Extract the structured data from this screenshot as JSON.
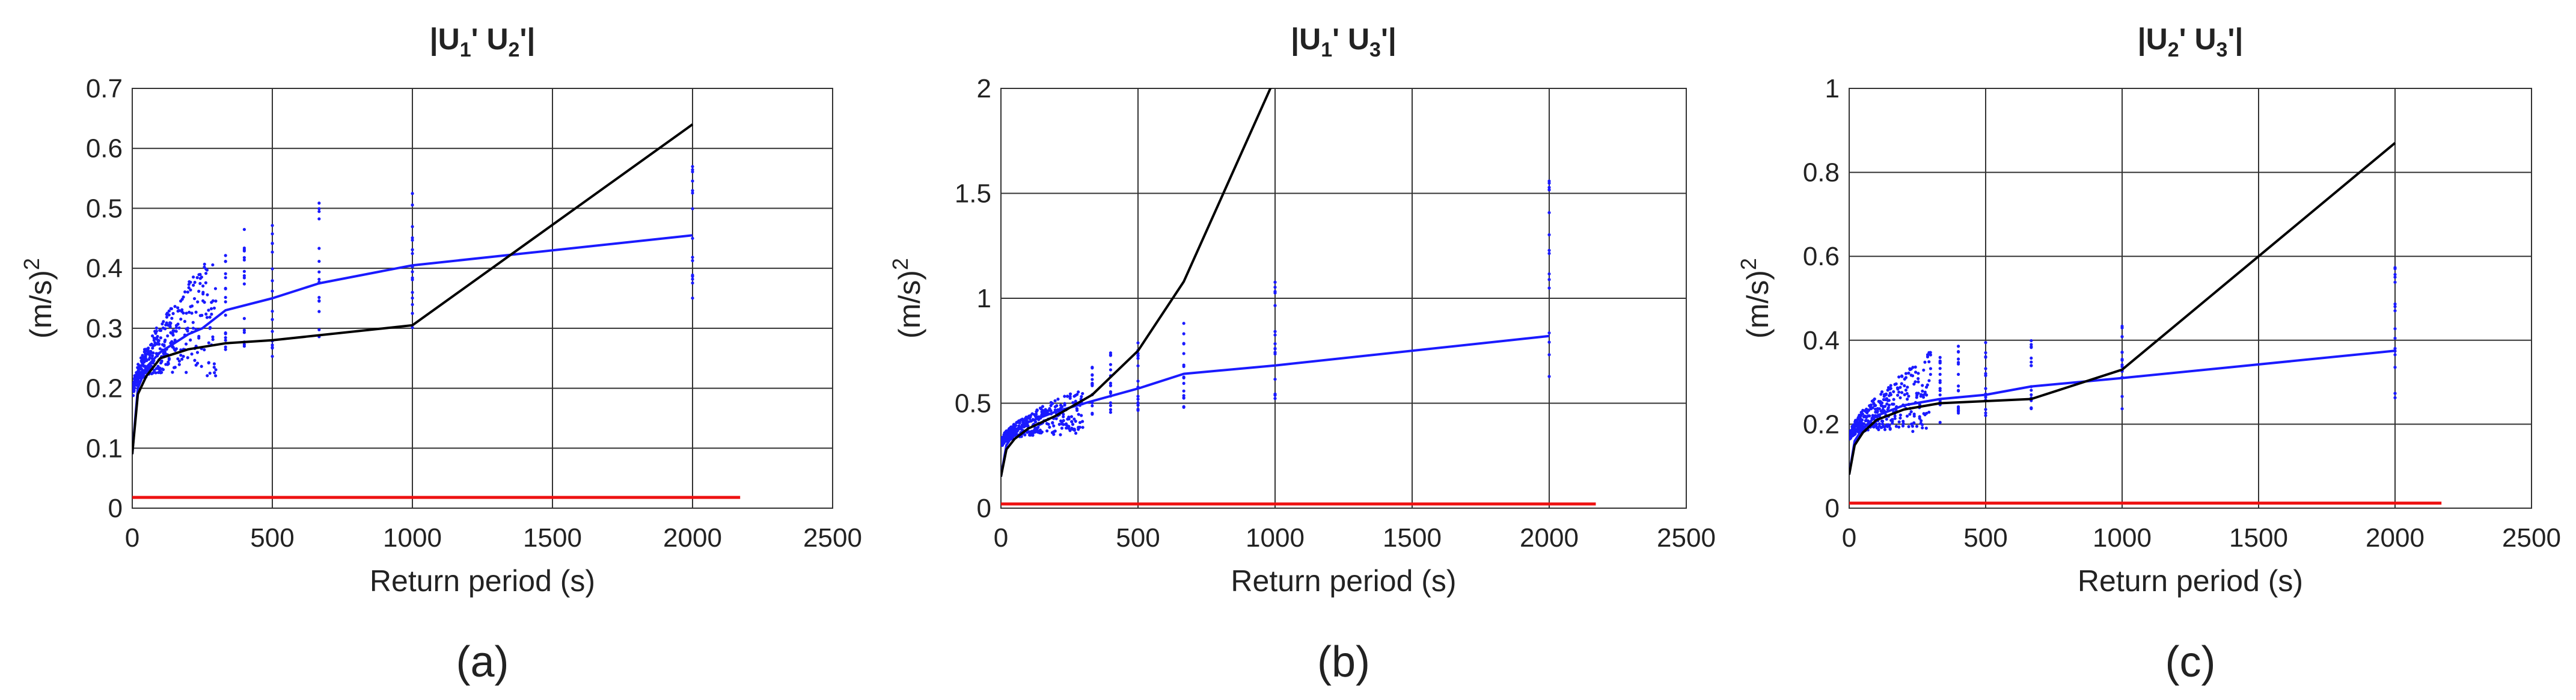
{
  "chart_data": [
    {
      "type": "line",
      "panel": "(a)",
      "title": {
        "main": "|U",
        "s1": "1",
        "mid": "' U",
        "s2": "2",
        "end": "'|"
      },
      "xlabel": "Return period (s)",
      "ylabel": {
        "base": "(m/s)",
        "sup": "2"
      },
      "xlim": [
        0,
        2500
      ],
      "ylim": [
        0,
        0.7
      ],
      "xticks": [
        0,
        500,
        1000,
        1500,
        2000,
        2500
      ],
      "yticks": [
        0,
        0.1,
        0.2,
        0.3,
        0.4,
        0.5,
        0.6,
        0.7
      ],
      "ytick_labels": [
        "0",
        "0.1",
        "0.2",
        "0.3",
        "0.4",
        "0.5",
        "0.6",
        "0.7"
      ],
      "grid": true,
      "scatter": {
        "name": "samples",
        "color": "#1a1aff",
        "a": 0.17,
        "b": 0.085,
        "d": 0.02,
        "e": 0.22,
        "columns": [
          {
            "x": 333,
            "min": 0.26,
            "max": 0.44
          },
          {
            "x": 400,
            "min": 0.27,
            "max": 0.49
          },
          {
            "x": 500,
            "min": 0.25,
            "max": 0.51
          },
          {
            "x": 667,
            "min": 0.28,
            "max": 0.52
          },
          {
            "x": 1000,
            "min": 0.29,
            "max": 0.53
          },
          {
            "x": 2000,
            "min": 0.34,
            "max": 0.58
          }
        ]
      },
      "series": [
        {
          "name": "mean",
          "color": "#1a1aff",
          "x": [
            0,
            20,
            50,
            100,
            150,
            200,
            250,
            333,
            500,
            667,
            1000,
            2000
          ],
          "y": [
            0.09,
            0.2,
            0.235,
            0.26,
            0.275,
            0.29,
            0.3,
            0.33,
            0.35,
            0.375,
            0.405,
            0.455
          ]
        },
        {
          "name": "black",
          "color": "#000000",
          "x": [
            0,
            20,
            50,
            100,
            200,
            333,
            500,
            1000,
            2000
          ],
          "y": [
            0.09,
            0.19,
            0.22,
            0.25,
            0.265,
            0.275,
            0.28,
            0.305,
            0.64
          ]
        },
        {
          "name": "red",
          "color": "#ee1111",
          "x": [
            0,
            2170
          ],
          "y": [
            0.018,
            0.018
          ]
        }
      ]
    },
    {
      "type": "line",
      "panel": "(b)",
      "title": {
        "main": "|U",
        "s1": "1",
        "mid": "' U",
        "s2": "3",
        "end": "'|"
      },
      "xlabel": "Return period (s)",
      "ylabel": {
        "base": "(m/s)",
        "sup": "2"
      },
      "xlim": [
        0,
        2500
      ],
      "ylim": [
        0,
        2
      ],
      "xticks": [
        0,
        500,
        1000,
        1500,
        2000,
        2500
      ],
      "yticks": [
        0,
        0.5,
        1,
        1.5,
        2
      ],
      "ytick_labels": [
        "0",
        "0.5",
        "1",
        "1.5",
        "2"
      ],
      "grid": true,
      "scatter": {
        "name": "samples",
        "color": "#1a1aff",
        "a": 0.28,
        "b": 0.1,
        "d": 0.04,
        "e": 0.23,
        "columns": [
          {
            "x": 333,
            "min": 0.42,
            "max": 0.68
          },
          {
            "x": 400,
            "min": 0.45,
            "max": 0.75
          },
          {
            "x": 500,
            "min": 0.45,
            "max": 0.8
          },
          {
            "x": 667,
            "min": 0.48,
            "max": 0.9
          },
          {
            "x": 1000,
            "min": 0.52,
            "max": 1.13
          },
          {
            "x": 2000,
            "min": 0.52,
            "max": 1.59
          }
        ]
      },
      "series": [
        {
          "name": "mean",
          "color": "#1a1aff",
          "x": [
            0,
            20,
            50,
            100,
            200,
            333,
            500,
            667,
            1000,
            2000
          ],
          "y": [
            0.15,
            0.3,
            0.36,
            0.41,
            0.46,
            0.51,
            0.57,
            0.64,
            0.68,
            0.82
          ]
        },
        {
          "name": "black",
          "color": "#000000",
          "x": [
            0,
            20,
            50,
            100,
            200,
            333,
            500,
            667,
            1000
          ],
          "y": [
            0.15,
            0.28,
            0.33,
            0.38,
            0.44,
            0.54,
            0.75,
            1.08,
            2.05
          ]
        },
        {
          "name": "red",
          "color": "#ee1111",
          "x": [
            0,
            2170
          ],
          "y": [
            0.02,
            0.02
          ]
        }
      ]
    },
    {
      "type": "line",
      "panel": "(c)",
      "title": {
        "main": "|U",
        "s1": "2",
        "mid": "' U",
        "s2": "3",
        "end": "'|"
      },
      "xlabel": "Return period (s)",
      "ylabel": {
        "base": "(m/s)",
        "sup": "2"
      },
      "xlim": [
        0,
        2500
      ],
      "ylim": [
        0,
        1
      ],
      "xticks": [
        0,
        500,
        1000,
        1500,
        2000,
        2500
      ],
      "yticks": [
        0,
        0.2,
        0.4,
        0.6,
        0.8,
        1
      ],
      "ytick_labels": [
        "0",
        "0.2",
        "0.4",
        "0.6",
        "0.8",
        "1"
      ],
      "grid": true,
      "scatter": {
        "name": "samples",
        "color": "#1a1aff",
        "a": 0.15,
        "b": 0.065,
        "d": 0.02,
        "e": 0.2,
        "columns": [
          {
            "x": 333,
            "min": 0.2,
            "max": 0.37
          },
          {
            "x": 400,
            "min": 0.21,
            "max": 0.39
          },
          {
            "x": 500,
            "min": 0.21,
            "max": 0.4
          },
          {
            "x": 667,
            "min": 0.22,
            "max": 0.41
          },
          {
            "x": 1000,
            "min": 0.23,
            "max": 0.45
          },
          {
            "x": 2000,
            "min": 0.24,
            "max": 0.61
          }
        ]
      },
      "series": [
        {
          "name": "mean",
          "color": "#1a1aff",
          "x": [
            0,
            20,
            50,
            100,
            200,
            333,
            500,
            667,
            1000,
            2000
          ],
          "y": [
            0.08,
            0.16,
            0.19,
            0.22,
            0.245,
            0.26,
            0.27,
            0.29,
            0.31,
            0.375
          ]
        },
        {
          "name": "black",
          "color": "#000000",
          "x": [
            0,
            20,
            50,
            100,
            200,
            333,
            500,
            667,
            1000,
            2000
          ],
          "y": [
            0.08,
            0.15,
            0.18,
            0.21,
            0.235,
            0.25,
            0.255,
            0.26,
            0.33,
            0.87
          ]
        },
        {
          "name": "red",
          "color": "#ee1111",
          "x": [
            0,
            2170
          ],
          "y": [
            0.012,
            0.012
          ]
        }
      ]
    }
  ]
}
